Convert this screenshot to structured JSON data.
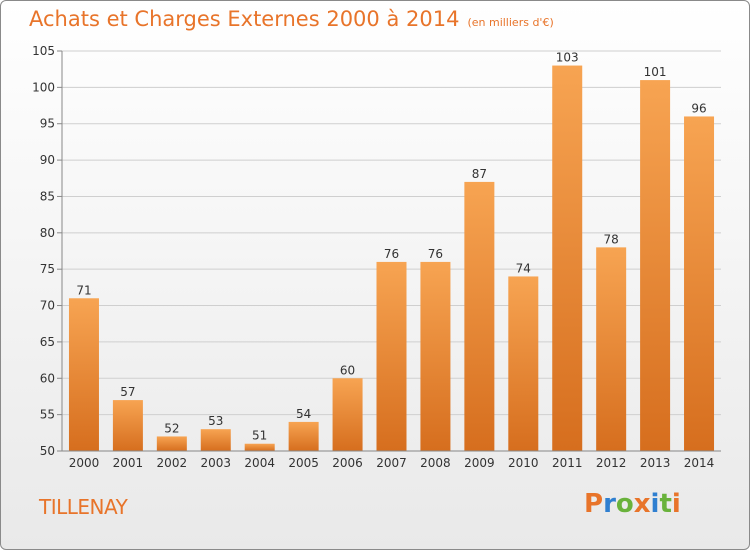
{
  "header": {
    "title": "Achats et Charges Externes 2000 à 2014",
    "subtitle": "(en milliers d'€)"
  },
  "footer": {
    "location": "TILLENAY",
    "logo": "Proxiti"
  },
  "colors": {
    "accent": "#e8742a",
    "bar_light": "#f7a452",
    "bar_dark": "#d66e1e",
    "logo_letters": [
      "#e8742a",
      "#2f7fd0",
      "#69b23b",
      "#e8742a",
      "#2f7fd0",
      "#69b23b",
      "#e8742a"
    ]
  },
  "chart_data": {
    "type": "bar",
    "categories": [
      "2000",
      "2001",
      "2002",
      "2003",
      "2004",
      "2005",
      "2006",
      "2007",
      "2008",
      "2009",
      "2010",
      "2011",
      "2012",
      "2013",
      "2014"
    ],
    "values": [
      71,
      57,
      52,
      53,
      51,
      54,
      60,
      76,
      76,
      87,
      74,
      103,
      78,
      101,
      96
    ],
    "ylim": [
      50,
      105
    ],
    "yticks": [
      50,
      55,
      60,
      65,
      70,
      75,
      80,
      85,
      90,
      95,
      100,
      105
    ],
    "grid": true,
    "data_labels": true
  }
}
